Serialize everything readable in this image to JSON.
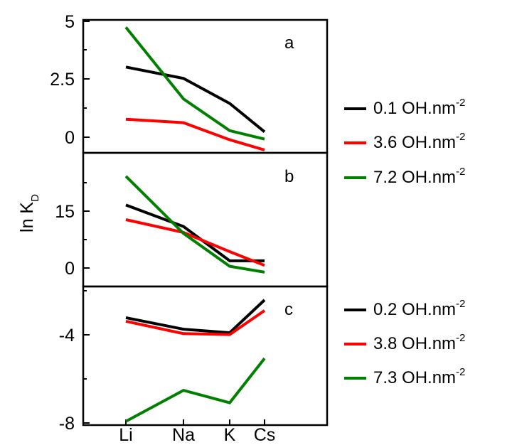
{
  "chart_data": {
    "type": "line",
    "categories": [
      "Li",
      "Na",
      "K",
      "Cs"
    ],
    "ylabel": "ln K",
    "ylabel_subscript": "D",
    "panels": [
      {
        "label": "a",
        "ylim": [
          -0.6,
          5
        ],
        "yticks": [
          "5",
          "2.5",
          "0"
        ],
        "series": [
          {
            "name": "0.1 OH.nm",
            "values": [
              3.05,
              2.55,
              1.45,
              0.2
            ],
            "color": "#000000"
          },
          {
            "name": "3.6 OH.nm",
            "values": [
              0.75,
              0.6,
              -0.15,
              -0.6
            ],
            "color": "#ff0000"
          },
          {
            "name": "7.2 OH.nm",
            "values": [
              4.8,
              1.65,
              0.25,
              -0.12
            ],
            "color": "#008000"
          }
        ]
      },
      {
        "label": "b",
        "ylim": [
          -3,
          25
        ],
        "yticks": [
          "15",
          "0"
        ],
        "series": [
          {
            "name": "0.1 OH.nm",
            "values": [
              14.2,
              9.5,
              2,
              2
            ],
            "color": "#000000"
          },
          {
            "name": "3.6 OH.nm",
            "values": [
              11,
              8.2,
              4,
              1
            ],
            "color": "#ff0000"
          },
          {
            "name": "7.2 OH.nm",
            "values": [
              20.5,
              8,
              0.8,
              -0.5
            ],
            "color": "#008000"
          }
        ]
      },
      {
        "label": "c",
        "ylim": [
          -8,
          -0.5
        ],
        "yticks": [
          "-4",
          "-8"
        ],
        "series": [
          {
            "name": "0.2 OH.nm",
            "values": [
              -2.1,
              -2.75,
              -2.95,
              -1.1
            ],
            "color": "#000000"
          },
          {
            "name": "3.8 OH.nm",
            "values": [
              -2.3,
              -3.0,
              -3.05,
              -1.7
            ],
            "color": "#ff0000"
          },
          {
            "name": "7.3 OH.nm",
            "values": [
              -7.95,
              -6.2,
              -6.9,
              -4.4
            ],
            "color": "#008000"
          }
        ]
      }
    ],
    "legends": [
      {
        "panels": "a-b",
        "items": [
          {
            "label": "0.1 OH.nm",
            "sup": "-2",
            "color": "#000000"
          },
          {
            "label": "3.6 OH.nm",
            "sup": "-2",
            "color": "#ff0000"
          },
          {
            "label": "7.2 OH.nm",
            "sup": "-2",
            "color": "#008000"
          }
        ]
      },
      {
        "panels": "c",
        "items": [
          {
            "label": "0.2 OH.nm",
            "sup": "-2",
            "color": "#000000"
          },
          {
            "label": "3.8 OH.nm",
            "sup": "-2",
            "color": "#ff0000"
          },
          {
            "label": "7.3 OH.nm",
            "sup": "-2",
            "color": "#008000"
          }
        ]
      }
    ]
  }
}
